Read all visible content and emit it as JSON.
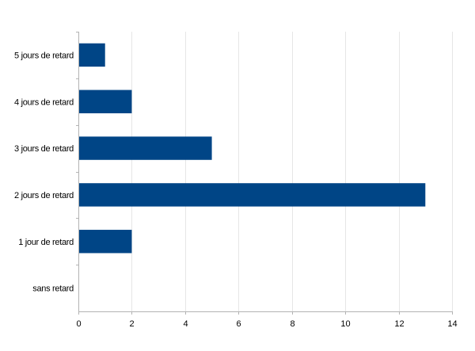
{
  "chart_data": {
    "type": "bar",
    "orientation": "horizontal",
    "categories": [
      "sans retard",
      "1 jour de retard",
      "2 jours de retard",
      "3 jours de retard",
      "4 jours de retard",
      "5 jours de retard"
    ],
    "values": [
      0,
      2,
      13,
      5,
      2,
      1
    ],
    "title": "",
    "xlabel": "",
    "ylabel": "",
    "xlim": [
      0,
      14
    ],
    "x_ticks": [
      0,
      2,
      4,
      6,
      8,
      10,
      12,
      14
    ],
    "grid": true,
    "legend": "none",
    "colors": {
      "bar": "#004586",
      "grid": "#e6e6e6",
      "axis": "#b3b3b3"
    }
  }
}
